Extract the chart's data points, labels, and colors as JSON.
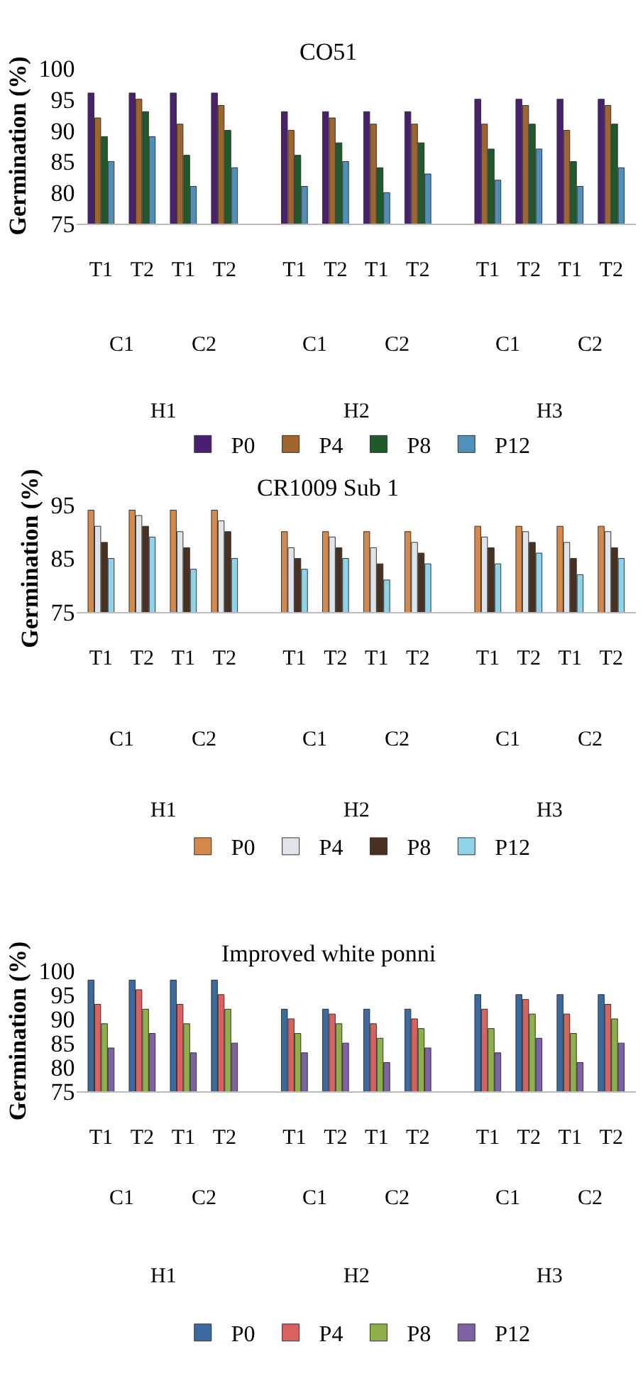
{
  "chart_data": [
    {
      "type": "bar",
      "title": "CO51",
      "ylabel": "Germination (%)",
      "categories": [
        "T1",
        "T2",
        "T1",
        "T2",
        "T1",
        "T2",
        "T1",
        "T2",
        "T1",
        "T2",
        "T1",
        "T2"
      ],
      "annotations": [
        "C1",
        "C2",
        "C1",
        "C2",
        "C1",
        "C2",
        "H1",
        "H2",
        "H3"
      ],
      "ylim": [
        75,
        100
      ],
      "yticks": [
        75,
        80,
        85,
        90,
        95,
        100
      ],
      "legend": "bottom",
      "series": [
        {
          "name": "P0",
          "color": "#4b1f6f",
          "values": [
            96,
            96,
            96,
            96,
            93,
            93,
            93,
            93,
            95,
            95,
            95,
            95
          ]
        },
        {
          "name": "P4",
          "color": "#a0652e",
          "values": [
            92,
            95,
            91,
            94,
            90,
            92,
            91,
            91,
            91,
            94,
            90,
            94
          ]
        },
        {
          "name": "P8",
          "color": "#1e5a2a",
          "values": [
            89,
            93,
            86,
            90,
            86,
            88,
            84,
            88,
            87,
            91,
            85,
            91
          ]
        },
        {
          "name": "P12",
          "color": "#4f8fb8",
          "values": [
            85,
            89,
            81,
            84,
            81,
            85,
            80,
            83,
            82,
            87,
            81,
            84
          ]
        }
      ]
    },
    {
      "type": "bar",
      "title": "CR1009 Sub 1",
      "ylabel": "Germination (%)",
      "categories": [
        "T1",
        "T2",
        "T1",
        "T2",
        "T1",
        "T2",
        "T1",
        "T2",
        "T1",
        "T2",
        "T1",
        "T2"
      ],
      "annotations": [
        "C1",
        "C2",
        "C1",
        "C2",
        "C1",
        "C2",
        "H1",
        "H2",
        "H3"
      ],
      "ylim": [
        75,
        95
      ],
      "yticks": [
        75,
        85,
        95
      ],
      "legend": "bottom",
      "series": [
        {
          "name": "P0",
          "color": "#d4894a",
          "values": [
            94,
            94,
            94,
            94,
            90,
            90,
            90,
            90,
            91,
            91,
            91,
            91
          ]
        },
        {
          "name": "P4",
          "color": "#dfe3ea",
          "values": [
            91,
            93,
            90,
            92,
            87,
            89,
            87,
            88,
            89,
            90,
            88,
            90
          ]
        },
        {
          "name": "P8",
          "color": "#4a3020",
          "values": [
            88,
            91,
            87,
            90,
            85,
            87,
            84,
            86,
            87,
            88,
            85,
            87
          ]
        },
        {
          "name": "P12",
          "color": "#8fd3e8",
          "values": [
            85,
            89,
            83,
            85,
            83,
            85,
            81,
            84,
            84,
            86,
            82,
            85
          ]
        }
      ]
    },
    {
      "type": "bar",
      "title": "Improved white ponni",
      "ylabel": "Germination (%)",
      "categories": [
        "T1",
        "T2",
        "T1",
        "T2",
        "T1",
        "T2",
        "T1",
        "T2",
        "T1",
        "T2",
        "T1",
        "T2"
      ],
      "annotations": [
        "C1",
        "C2",
        "C1",
        "C2",
        "C1",
        "C2",
        "H1",
        "H2",
        "H3"
      ],
      "ylim": [
        75,
        100
      ],
      "yticks": [
        75,
        80,
        85,
        90,
        95,
        100
      ],
      "legend": "bottom",
      "series": [
        {
          "name": "P0",
          "color": "#3b6aa0",
          "values": [
            98,
            98,
            98,
            98,
            92,
            92,
            92,
            92,
            95,
            95,
            95,
            95
          ]
        },
        {
          "name": "P4",
          "color": "#d9625f",
          "values": [
            93,
            96,
            93,
            95,
            90,
            91,
            89,
            90,
            92,
            94,
            91,
            93
          ]
        },
        {
          "name": "P8",
          "color": "#8db04a",
          "values": [
            89,
            92,
            89,
            92,
            87,
            89,
            86,
            88,
            88,
            91,
            87,
            90
          ]
        },
        {
          "name": "P12",
          "color": "#7f62a6",
          "values": [
            84,
            87,
            83,
            85,
            83,
            85,
            81,
            84,
            83,
            86,
            81,
            85
          ]
        }
      ]
    }
  ]
}
